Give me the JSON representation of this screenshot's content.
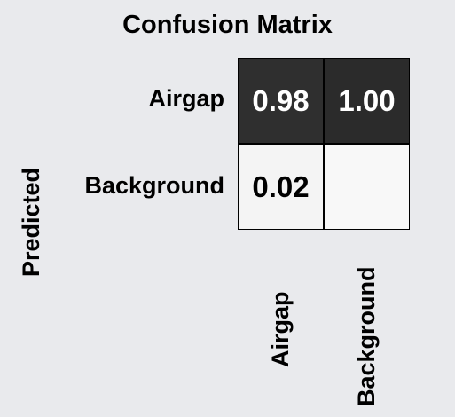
{
  "chart_data": {
    "type": "heatmap",
    "title": "Confusion Matrix",
    "ylabel": "Predicted",
    "xlabel": "",
    "rows": [
      "Airgap",
      "Background"
    ],
    "columns": [
      "Airgap",
      "Background"
    ],
    "values": [
      [
        0.98,
        1.0
      ],
      [
        0.02,
        null
      ]
    ],
    "cell_labels": [
      [
        "0.98",
        "1.00"
      ],
      [
        "0.02",
        ""
      ]
    ],
    "colors": {
      "high": "#2b2b2b",
      "low": "#f8f8f8",
      "dark_text": "#000000",
      "light_text": "#ffffff"
    }
  }
}
